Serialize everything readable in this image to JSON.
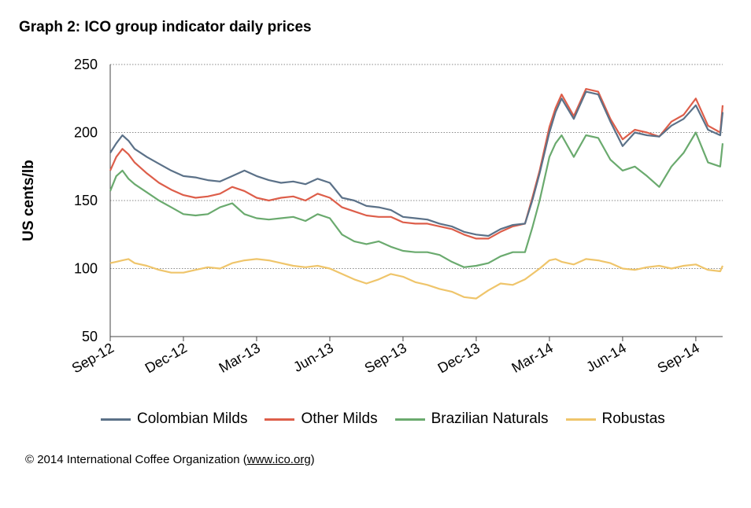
{
  "title": "Graph 2: ICO group indicator daily prices",
  "footer": {
    "copyright": "© 2014 International Coffee Organization (",
    "link": "www.ico.org",
    "close": ")"
  },
  "chart_data": {
    "type": "line",
    "ylabel": "US cents/lb",
    "xlabel": "",
    "ylim": [
      50,
      250
    ],
    "yticks": [
      50,
      100,
      150,
      200,
      250
    ],
    "grid": "horizontal-dotted",
    "legend_position": "bottom",
    "x_ticks": [
      "Sep-12",
      "Dec-12",
      "Mar-13",
      "Jun-13",
      "Sep-13",
      "Dec-13",
      "Mar-14",
      "Jun-14",
      "Sep-14"
    ],
    "x_tick_positions": [
      0,
      3,
      6,
      9,
      12,
      15,
      18,
      21,
      24
    ],
    "x_range": [
      0,
      25.1
    ],
    "x": [
      0,
      0.25,
      0.5,
      0.75,
      1,
      1.5,
      2,
      2.5,
      3,
      3.5,
      4,
      4.5,
      5,
      5.5,
      6,
      6.5,
      7,
      7.5,
      8,
      8.5,
      9,
      9.5,
      10,
      10.5,
      11,
      11.5,
      12,
      12.5,
      13,
      13.5,
      14,
      14.5,
      15,
      15.5,
      16,
      16.5,
      17,
      17.3,
      17.6,
      18,
      18.25,
      18.5,
      19,
      19.5,
      20,
      20.5,
      21,
      21.5,
      22,
      22.5,
      23,
      23.5,
      24,
      24.5,
      25,
      25.1
    ],
    "series": [
      {
        "name": "Colombian Milds",
        "color": "#5b7188",
        "values": [
          185,
          192,
          198,
          194,
          188,
          182,
          177,
          172,
          168,
          167,
          165,
          164,
          168,
          172,
          168,
          165,
          163,
          164,
          162,
          166,
          163,
          152,
          150,
          146,
          145,
          143,
          138,
          137,
          136,
          133,
          131,
          127,
          125,
          124,
          129,
          132,
          133,
          150,
          170,
          200,
          215,
          225,
          210,
          230,
          228,
          208,
          190,
          200,
          198,
          197,
          205,
          210,
          220,
          202,
          198,
          215
        ]
      },
      {
        "name": "Other Milds",
        "color": "#dd5e4a",
        "values": [
          172,
          182,
          188,
          184,
          178,
          170,
          163,
          158,
          154,
          152,
          153,
          155,
          160,
          157,
          152,
          150,
          152,
          153,
          150,
          155,
          152,
          145,
          142,
          139,
          138,
          138,
          134,
          133,
          133,
          131,
          129,
          125,
          122,
          122,
          127,
          131,
          133,
          152,
          172,
          204,
          218,
          228,
          212,
          232,
          230,
          210,
          195,
          202,
          200,
          197,
          208,
          213,
          225,
          205,
          200,
          220
        ]
      },
      {
        "name": "Brazilian Naturals",
        "color": "#6aaa6e",
        "values": [
          157,
          168,
          172,
          166,
          162,
          156,
          150,
          145,
          140,
          139,
          140,
          145,
          148,
          140,
          137,
          136,
          137,
          138,
          135,
          140,
          137,
          125,
          120,
          118,
          120,
          116,
          113,
          112,
          112,
          110,
          105,
          101,
          102,
          104,
          109,
          112,
          112,
          130,
          150,
          182,
          192,
          198,
          182,
          198,
          196,
          180,
          172,
          175,
          168,
          160,
          175,
          185,
          200,
          178,
          175,
          192
        ]
      },
      {
        "name": "Robustas",
        "color": "#efc56b",
        "values": [
          104,
          105,
          106,
          107,
          104,
          102,
          99,
          97,
          97,
          99,
          101,
          100,
          104,
          106,
          107,
          106,
          104,
          102,
          101,
          102,
          100,
          96,
          92,
          89,
          92,
          96,
          94,
          90,
          88,
          85,
          83,
          79,
          78,
          84,
          89,
          88,
          92,
          96,
          100,
          106,
          107,
          105,
          103,
          107,
          106,
          104,
          100,
          99,
          101,
          102,
          100,
          102,
          103,
          99,
          98,
          102
        ]
      }
    ]
  }
}
